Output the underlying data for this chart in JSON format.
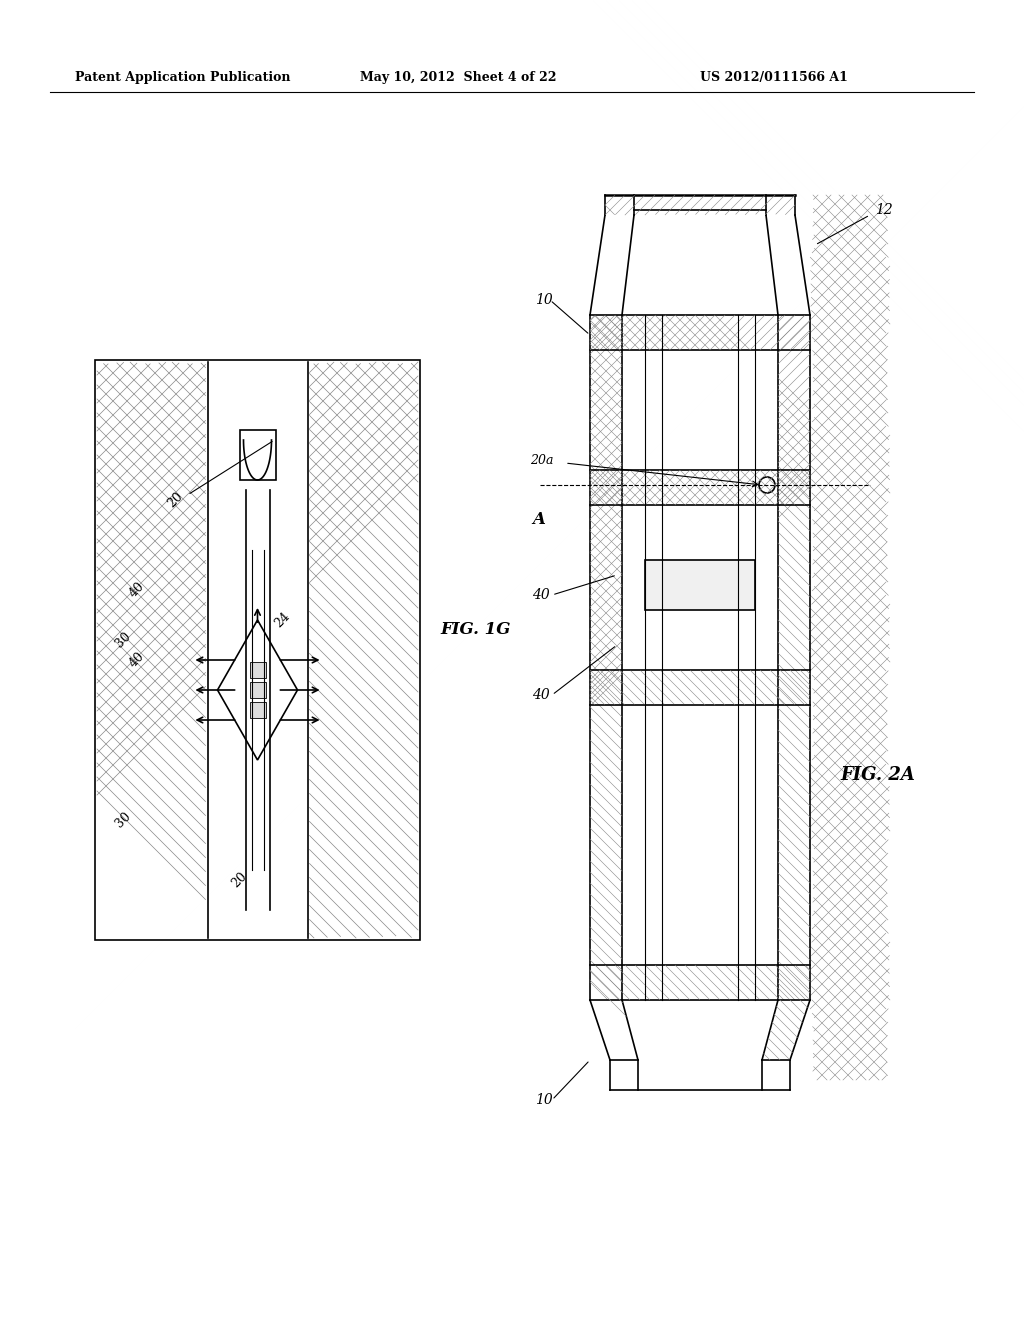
{
  "background_color": "#ffffff",
  "header_text": "Patent Application Publication",
  "header_date": "May 10, 2012  Sheet 4 of 22",
  "header_patent": "US 2012/0111566 A1",
  "fig1g_label": "FIG. 1G",
  "fig2a_label": "FIG. 2A",
  "text_color": "#000000",
  "line_color": "#000000",
  "hatch_color": "#555555",
  "hatch_pattern": "//"
}
